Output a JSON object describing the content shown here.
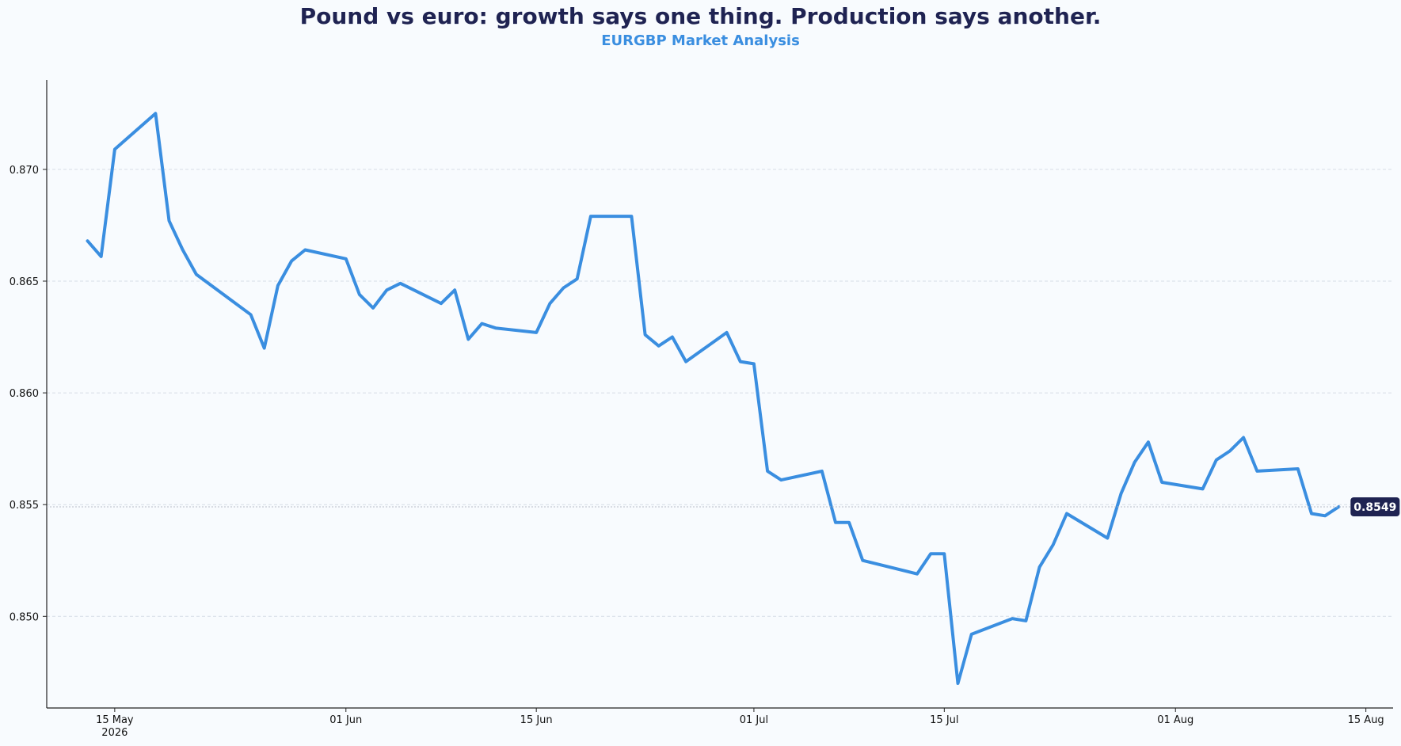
{
  "header": {
    "title": "Pound vs euro: growth says one thing. Production says another.",
    "subtitle": "EURGBP Market Analysis"
  },
  "colors": {
    "line": "#3a8ee0",
    "title": "#1f2352",
    "badge": "#1f2352",
    "grid": "#d6dde6",
    "background": "#f8fbfe"
  },
  "chart_data": {
    "type": "line",
    "title": "Pound vs euro: growth says one thing. Production says another.",
    "subtitle": "EURGBP Market Analysis",
    "xlabel": "",
    "ylabel": "",
    "xlim": [
      "2026-05-10",
      "2026-08-17"
    ],
    "ylim": [
      0.8459,
      0.874
    ],
    "grid": true,
    "x_ticks": [
      {
        "date": "2026-05-15",
        "label": "15 May",
        "sublabel": "2026"
      },
      {
        "date": "2026-06-01",
        "label": "01 Jun",
        "sublabel": ""
      },
      {
        "date": "2026-06-15",
        "label": "15 Jun",
        "sublabel": ""
      },
      {
        "date": "2026-07-01",
        "label": "01 Jul",
        "sublabel": ""
      },
      {
        "date": "2026-07-15",
        "label": "15 Jul",
        "sublabel": ""
      },
      {
        "date": "2026-08-01",
        "label": "01 Aug",
        "sublabel": ""
      },
      {
        "date": "2026-08-15",
        "label": "15 Aug",
        "sublabel": ""
      }
    ],
    "y_ticks": [
      {
        "value": 0.85,
        "label": "0.850"
      },
      {
        "value": 0.855,
        "label": "0.855"
      },
      {
        "value": 0.86,
        "label": "0.860"
      },
      {
        "value": 0.865,
        "label": "0.865"
      },
      {
        "value": 0.87,
        "label": "0.870"
      }
    ],
    "last_value_label": "0.8549",
    "series": [
      {
        "name": "EURGBP",
        "points": [
          [
            "2026-05-13",
            0.8668
          ],
          [
            "2026-05-14",
            0.8661
          ],
          [
            "2026-05-15",
            0.8709
          ],
          [
            "2026-05-18",
            0.8725
          ],
          [
            "2026-05-19",
            0.8677
          ],
          [
            "2026-05-20",
            0.8664
          ],
          [
            "2026-05-21",
            0.8653
          ],
          [
            "2026-05-25",
            0.8635
          ],
          [
            "2026-05-26",
            0.862
          ],
          [
            "2026-05-27",
            0.8648
          ],
          [
            "2026-05-28",
            0.8659
          ],
          [
            "2026-05-29",
            0.8664
          ],
          [
            "2026-06-01",
            0.866
          ],
          [
            "2026-06-02",
            0.8644
          ],
          [
            "2026-06-03",
            0.8638
          ],
          [
            "2026-06-04",
            0.8646
          ],
          [
            "2026-06-05",
            0.8649
          ],
          [
            "2026-06-08",
            0.864
          ],
          [
            "2026-06-09",
            0.8646
          ],
          [
            "2026-06-10",
            0.8624
          ],
          [
            "2026-06-11",
            0.8631
          ],
          [
            "2026-06-12",
            0.8629
          ],
          [
            "2026-06-15",
            0.8627
          ],
          [
            "2026-06-16",
            0.864
          ],
          [
            "2026-06-17",
            0.8647
          ],
          [
            "2026-06-18",
            0.8651
          ],
          [
            "2026-06-19",
            0.8679
          ],
          [
            "2026-06-22",
            0.8679
          ],
          [
            "2026-06-23",
            0.8626
          ],
          [
            "2026-06-24",
            0.8621
          ],
          [
            "2026-06-25",
            0.8625
          ],
          [
            "2026-06-26",
            0.8614
          ],
          [
            "2026-06-29",
            0.8627
          ],
          [
            "2026-06-30",
            0.8614
          ],
          [
            "2026-07-01",
            0.8613
          ],
          [
            "2026-07-02",
            0.8565
          ],
          [
            "2026-07-03",
            0.8561
          ],
          [
            "2026-07-06",
            0.8565
          ],
          [
            "2026-07-07",
            0.8542
          ],
          [
            "2026-07-08",
            0.8542
          ],
          [
            "2026-07-09",
            0.8525
          ],
          [
            "2026-07-13",
            0.8519
          ],
          [
            "2026-07-14",
            0.8528
          ],
          [
            "2026-07-15",
            0.8528
          ],
          [
            "2026-07-16",
            0.847
          ],
          [
            "2026-07-17",
            0.8492
          ],
          [
            "2026-07-20",
            0.8499
          ],
          [
            "2026-07-21",
            0.8498
          ],
          [
            "2026-07-22",
            0.8522
          ],
          [
            "2026-07-23",
            0.8532
          ],
          [
            "2026-07-24",
            0.8546
          ],
          [
            "2026-07-27",
            0.8535
          ],
          [
            "2026-07-28",
            0.8555
          ],
          [
            "2026-07-29",
            0.8569
          ],
          [
            "2026-07-30",
            0.8578
          ],
          [
            "2026-07-31",
            0.856
          ],
          [
            "2026-08-03",
            0.8557
          ],
          [
            "2026-08-04",
            0.857
          ],
          [
            "2026-08-05",
            0.8574
          ],
          [
            "2026-08-06",
            0.858
          ],
          [
            "2026-08-07",
            0.8565
          ],
          [
            "2026-08-10",
            0.8566
          ],
          [
            "2026-08-11",
            0.8546
          ],
          [
            "2026-08-12",
            0.8545
          ],
          [
            "2026-08-13",
            0.8549
          ]
        ]
      }
    ]
  }
}
